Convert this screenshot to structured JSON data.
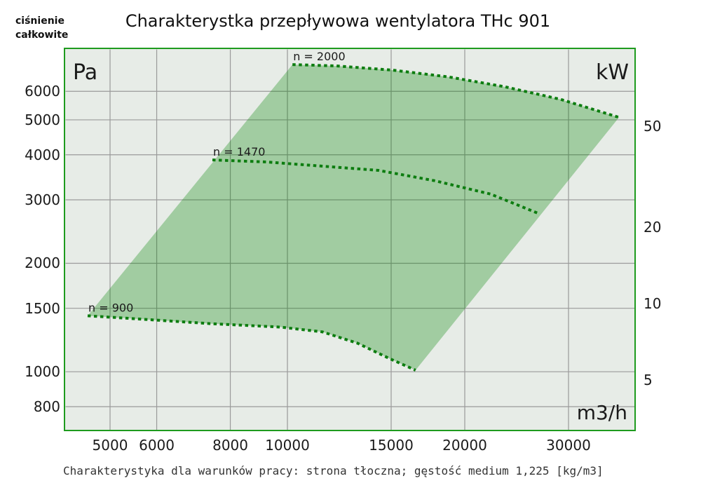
{
  "header": {
    "y_axis_title_line1": "ciśnienie",
    "y_axis_title_line2": "całkowite",
    "title": "Charakterystka przepływowa wentylatora THc 901"
  },
  "footer": {
    "text": "Charakterystyka dla warunków pracy: strona tłoczna; gęstość medium 1,225 [kg/m3]"
  },
  "chart_data": {
    "type": "area",
    "title": "Charakterystka przepływowa wentylatora THc 901",
    "x_axis": {
      "label": "m3/h",
      "scale": "log",
      "ticks": [
        5000,
        6000,
        8000,
        10000,
        15000,
        20000,
        30000
      ],
      "range": [
        4200,
        39000
      ]
    },
    "y_axis_left": {
      "label": "Pa",
      "scale": "log",
      "ticks": [
        800,
        1000,
        1500,
        2000,
        3000,
        4000,
        5000,
        6000
      ],
      "range": [
        685,
        7860
      ]
    },
    "y_axis_right": {
      "label": "kW",
      "scale": "log",
      "ticks": [
        5,
        10,
        20,
        50
      ],
      "range": [
        3.1,
        100
      ]
    },
    "grid": "on",
    "series": [
      {
        "name": "n = 900",
        "points": [
          [
            4580,
            1430
          ],
          [
            5630,
            1400
          ],
          [
            7400,
            1360
          ],
          [
            9730,
            1330
          ],
          [
            11470,
            1290
          ],
          [
            13150,
            1200
          ],
          [
            14870,
            1090
          ],
          [
            16500,
            1010
          ]
        ]
      },
      {
        "name": "n = 1470",
        "points": [
          [
            7460,
            3870
          ],
          [
            9210,
            3820
          ],
          [
            11470,
            3720
          ],
          [
            14280,
            3620
          ],
          [
            17770,
            3390
          ],
          [
            22140,
            3110
          ],
          [
            26810,
            2740
          ]
        ]
      },
      {
        "name": "n = 2000",
        "points": [
          [
            10200,
            7120
          ],
          [
            12100,
            7060
          ],
          [
            15080,
            6870
          ],
          [
            18780,
            6580
          ],
          [
            23370,
            6180
          ],
          [
            29090,
            5700
          ],
          [
            36550,
            5080
          ]
        ]
      }
    ],
    "region_note": "operating envelope bounded below by n = 900 curve, above by n = 2000 curve and by constant-resistance diagonals",
    "colors": {
      "curve": "#0d7d10",
      "region_fill": "rgba(0,128,0,0.30)",
      "plot_border": "#1e9b1e",
      "grid": "#9a9a9a",
      "plot_bg": "#e7ece7"
    }
  }
}
